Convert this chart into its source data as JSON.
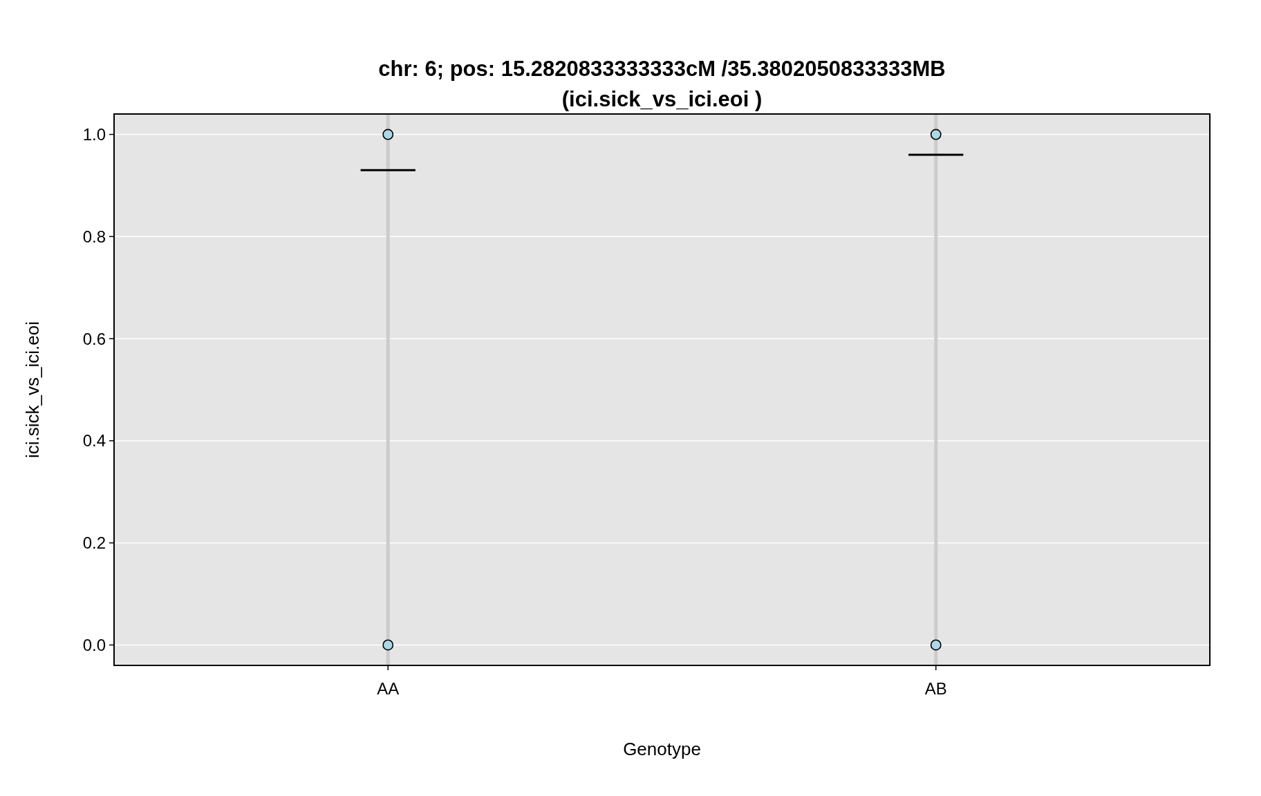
{
  "chart_data": {
    "type": "scatter",
    "title": "chr: 6; pos: 15.2820833333333cM /35.3802050833333MB\n(ici.sick_vs_ici.eoi )",
    "xlabel": "Genotype",
    "ylabel": "ici.sick_vs_ici.eoi",
    "categories": [
      "AA",
      "AB"
    ],
    "ylim": [
      -0.04,
      1.04
    ],
    "yticks": [
      {
        "value": 0,
        "label": "0.0"
      },
      {
        "value": 0.2,
        "label": "0.2"
      },
      {
        "value": 0.4,
        "label": "0.4"
      },
      {
        "value": 0.6,
        "label": "0.6"
      },
      {
        "value": 0.8,
        "label": "0.8"
      },
      {
        "value": 1,
        "label": "1.0"
      }
    ],
    "grid": true,
    "marker": "circle",
    "series": [
      {
        "color": "#add8e6",
        "x": [
          "AA",
          "AA",
          "AB",
          "AB"
        ],
        "values": [
          1,
          0,
          1,
          0
        ]
      },
      {
        "type": "box",
        "color": "#000000",
        "boxes": [
          {
            "low": 0.93,
            "q1": 0.93,
            "median": 0.93,
            "q3": 0.93,
            "high": 0.93
          },
          {
            "low": 0.96,
            "q1": 0.96,
            "median": 0.96,
            "q3": 0.96,
            "high": 0.96
          }
        ]
      }
    ]
  }
}
